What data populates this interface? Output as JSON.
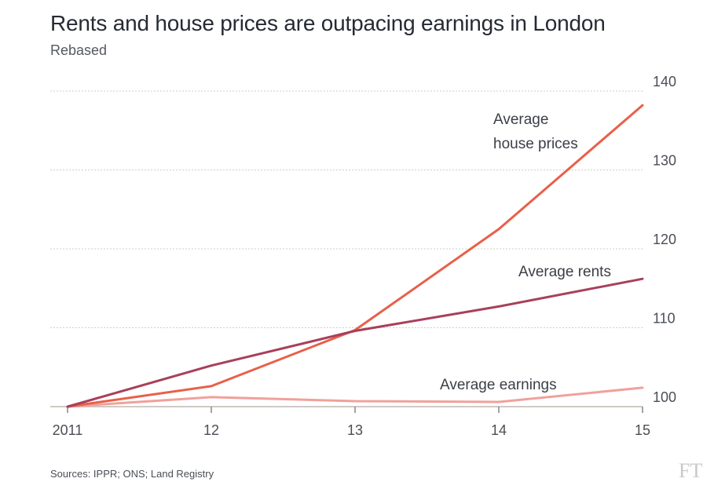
{
  "header": {
    "title": "Rents and house prices are outpacing earnings in London",
    "subtitle": "Rebased"
  },
  "footer": {
    "source": "Sources: IPPR; ONS; Land Registry",
    "logo_text": "FT"
  },
  "chart_data": {
    "type": "line",
    "x": [
      2011,
      2012,
      2013,
      2014,
      2015
    ],
    "x_tick_labels": [
      "2011",
      "12",
      "13",
      "14",
      "15"
    ],
    "y_ticks": [
      100,
      110,
      120,
      130,
      140
    ],
    "ylim": [
      100,
      140
    ],
    "y_axis_side": "right",
    "grid": true,
    "series": [
      {
        "name": "Average house prices",
        "label_lines": [
          "Average",
          "house prices"
        ],
        "values": [
          100,
          102.6,
          109.7,
          122.5,
          138.2
        ],
        "color": "#e8604a"
      },
      {
        "name": "Average rents",
        "label_lines": [
          "Average rents"
        ],
        "values": [
          100,
          105.2,
          109.6,
          112.7,
          116.2
        ],
        "color": "#a8405a"
      },
      {
        "name": "Average earnings",
        "label_lines": [
          "Average earnings"
        ],
        "values": [
          100,
          101.2,
          100.7,
          100.6,
          102.4
        ],
        "color": "#f0a19a"
      }
    ]
  }
}
